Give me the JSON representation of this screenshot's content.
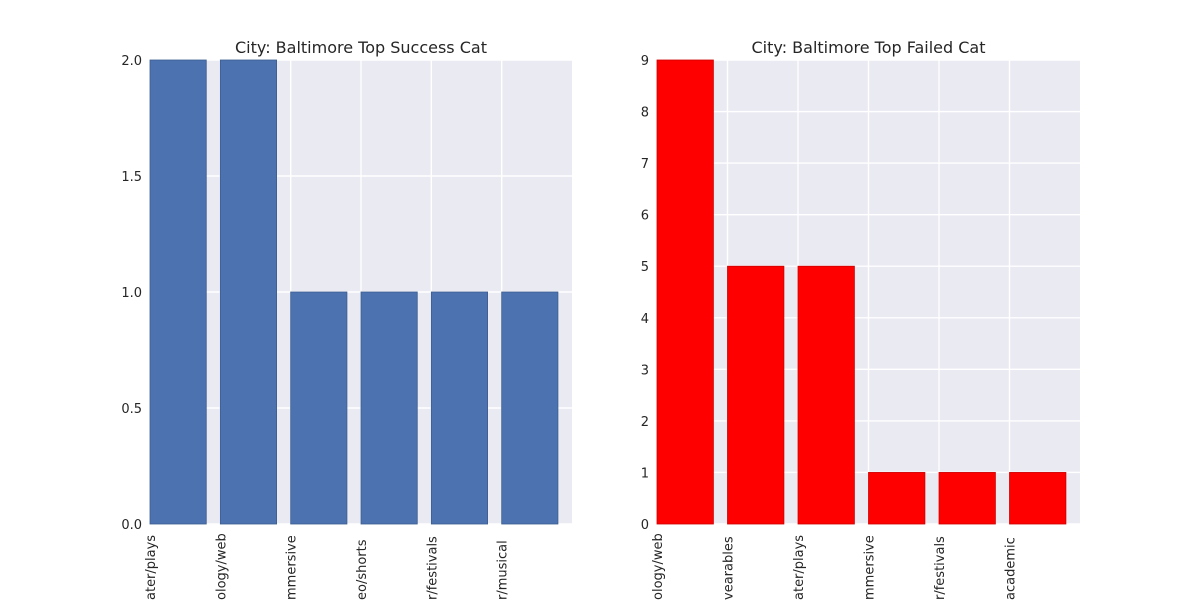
{
  "chart_data": [
    {
      "type": "bar",
      "title": "City: Baltimore Top Success Cat",
      "xlabel": "",
      "ylabel": "",
      "categories": [
        "theater/plays",
        "technology/web",
        "theater/immersive",
        "film & video/shorts",
        "food/food festivals",
        "theater/musical"
      ],
      "visible_tick_labels": [
        "ater/plays",
        "ology/web",
        "mmersive",
        "eo/shorts",
        "r/festivals",
        "r/musical"
      ],
      "values": [
        2,
        2,
        1,
        1,
        1,
        1
      ],
      "ylim": [
        0,
        2
      ],
      "yticks": [
        0,
        0.5,
        1.0,
        1.5,
        2.0
      ],
      "ytick_labels": [
        "0.0",
        "0.5",
        "1.0",
        "1.5",
        "2.0"
      ],
      "bar_color": "#4c72b0",
      "grid": true,
      "background": "#eaeaf2"
    },
    {
      "type": "bar",
      "title": "City: Baltimore Top Failed Cat",
      "xlabel": "",
      "ylabel": "",
      "categories": [
        "technology/web",
        "technology/wearables",
        "theater/plays",
        "theater/immersive",
        "food/food festivals",
        "publishing/academic"
      ],
      "visible_tick_labels": [
        "ology/web",
        "vearables",
        "ater/plays",
        "mmersive",
        "r/festivals",
        "academic"
      ],
      "values": [
        9,
        5,
        5,
        1,
        1,
        1
      ],
      "ylim": [
        0,
        9
      ],
      "yticks": [
        0,
        1,
        2,
        3,
        4,
        5,
        6,
        7,
        8,
        9
      ],
      "ytick_labels": [
        "0",
        "1",
        "2",
        "3",
        "4",
        "5",
        "6",
        "7",
        "8",
        "9"
      ],
      "bar_color": "#ff0000",
      "grid": true,
      "background": "#eaeaf2"
    }
  ]
}
